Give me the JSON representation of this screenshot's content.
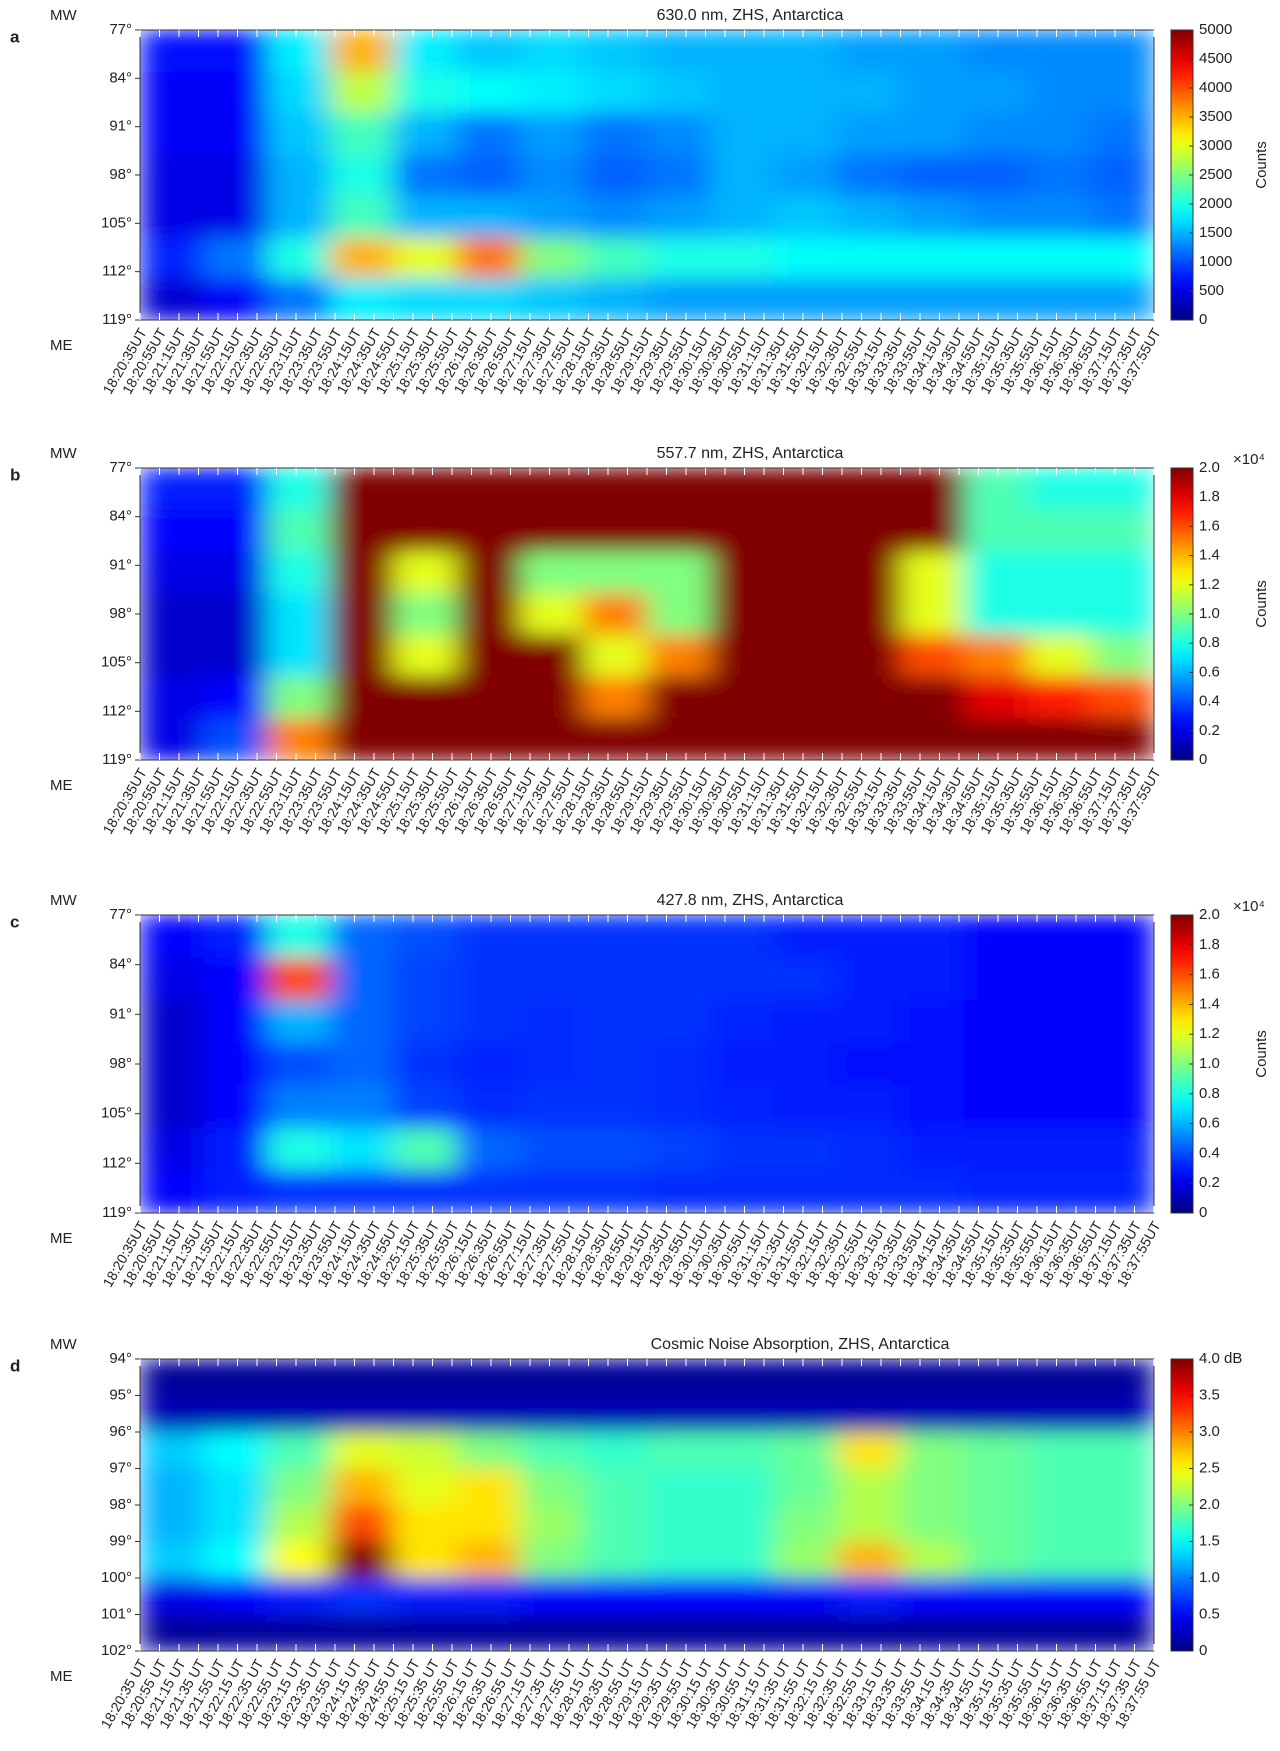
{
  "chart_data": [
    {
      "type": "heatmap",
      "panel_label": "a",
      "title": "630.0 nm, ZHS, Antarctica",
      "y_top_label": "MW",
      "y_bottom_label": "ME",
      "colormap": "jet",
      "categories": [
        "18:20:35UT",
        "18:20:55UT",
        "18:21:15UT",
        "18:21:35UT",
        "18:21:55UT",
        "18:22:15UT",
        "18:22:35UT",
        "18:22:55UT",
        "18:23:15UT",
        "18:23:35UT",
        "18:23:55UT",
        "18:24:15UT",
        "18:24:35UT",
        "18:24:55UT",
        "18:25:15UT",
        "18:25:35UT",
        "18:25:55UT",
        "18:26:15UT",
        "18:26:35UT",
        "18:26:55UT",
        "18:27:15UT",
        "18:27:35UT",
        "18:27:55UT",
        "18:28:15UT",
        "18:28:35UT",
        "18:28:55UT",
        "18:29:15UT",
        "18:29:35UT",
        "18:29:55UT",
        "18:30:15UT",
        "18:30:35UT",
        "18:30:55UT",
        "18:31:15UT",
        "18:31:35UT",
        "18:31:55UT",
        "18:32:15UT",
        "18:32:35UT",
        "18:32:55UT",
        "18:33:15UT",
        "18:33:35UT",
        "18:33:55UT",
        "18:34:15UT",
        "18:34:35UT",
        "18:34:55UT",
        "18:35:15UT",
        "18:35:35UT",
        "18:35:55UT",
        "18:36:15UT",
        "18:36:35UT",
        "18:36:55UT",
        "18:37:15UT",
        "18:37:35UT",
        "18:37:55UT"
      ],
      "ylim": [
        77,
        119
      ],
      "yticks": [
        {
          "value": 77,
          "label": "77°"
        },
        {
          "value": 84,
          "label": "84°"
        },
        {
          "value": 91,
          "label": "91°"
        },
        {
          "value": 98,
          "label": "98°"
        },
        {
          "value": 105,
          "label": "105°"
        },
        {
          "value": 112,
          "label": "112°"
        },
        {
          "value": 119,
          "label": "119°"
        }
      ],
      "zlim": [
        0,
        5000
      ],
      "zticks": [
        0,
        500,
        1000,
        1500,
        2000,
        2500,
        3000,
        3500,
        4000,
        4500,
        5000
      ],
      "colorbar_label": "Counts",
      "z": [
        [
          700,
          700,
          1800,
          3500,
          1800,
          1600,
          1700,
          1600,
          1500,
          1500,
          1500,
          1400,
          1400,
          1300,
          1300,
          1300
        ],
        [
          600,
          600,
          1700,
          2800,
          2000,
          1900,
          1800,
          1700,
          1600,
          1500,
          1500,
          1500,
          1400,
          1400,
          1300,
          1300
        ],
        [
          600,
          600,
          1600,
          2200,
          1500,
          1200,
          1400,
          1200,
          1300,
          1500,
          1500,
          1400,
          1400,
          1300,
          1300,
          1200
        ],
        [
          500,
          500,
          1500,
          2000,
          1200,
          1100,
          1300,
          1100,
          1200,
          1500,
          1400,
          1200,
          1100,
          1100,
          1200,
          1100
        ],
        [
          500,
          500,
          1500,
          2200,
          1500,
          1500,
          1400,
          1300,
          1400,
          1500,
          1600,
          1500,
          1400,
          1300,
          1300,
          1200
        ],
        [
          800,
          1200,
          2000,
          3500,
          3000,
          3800,
          2500,
          2200,
          2000,
          2000,
          1900,
          1900,
          1900,
          1900,
          1900,
          1900
        ],
        [
          400,
          600,
          1200,
          1800,
          1700,
          1700,
          1600,
          1500,
          1400,
          1400,
          1400,
          1400,
          1400,
          1400,
          1400,
          1400
        ]
      ]
    },
    {
      "type": "heatmap",
      "panel_label": "b",
      "title": "557.7 nm, ZHS, Antarctica",
      "y_top_label": "MW",
      "y_bottom_label": "ME",
      "colormap": "jet",
      "categories": [
        "18:20:35UT",
        "18:20:55UT",
        "18:21:15UT",
        "18:21:35UT",
        "18:21:55UT",
        "18:22:15UT",
        "18:22:35UT",
        "18:22:55UT",
        "18:23:15UT",
        "18:23:35UT",
        "18:23:55UT",
        "18:24:15UT",
        "18:24:35UT",
        "18:24:55UT",
        "18:25:15UT",
        "18:25:35UT",
        "18:25:55UT",
        "18:26:15UT",
        "18:26:35UT",
        "18:26:55UT",
        "18:27:15UT",
        "18:27:35UT",
        "18:27:55UT",
        "18:28:15UT",
        "18:28:35UT",
        "18:28:55UT",
        "18:29:15UT",
        "18:29:35UT",
        "18:29:55UT",
        "18:30:15UT",
        "18:30:35UT",
        "18:30:55UT",
        "18:31:15UT",
        "18:31:35UT",
        "18:31:55UT",
        "18:32:15UT",
        "18:32:35UT",
        "18:32:55UT",
        "18:33:15UT",
        "18:33:35UT",
        "18:33:55UT",
        "18:34:15UT",
        "18:34:35UT",
        "18:34:55UT",
        "18:35:15UT",
        "18:35:35UT",
        "18:35:55UT",
        "18:36:15UT",
        "18:36:35UT",
        "18:36:55UT",
        "18:37:15UT",
        "18:37:35UT",
        "18:37:55UT"
      ],
      "ylim": [
        77,
        119
      ],
      "yticks": [
        {
          "value": 77,
          "label": "77°"
        },
        {
          "value": 84,
          "label": "84°"
        },
        {
          "value": 91,
          "label": "91°"
        },
        {
          "value": 98,
          "label": "98°"
        },
        {
          "value": 105,
          "label": "105°"
        },
        {
          "value": 112,
          "label": "112°"
        },
        {
          "value": 119,
          "label": "119°"
        }
      ],
      "zlim": [
        0,
        20000
      ],
      "zticks": [
        0,
        {
          "value": 2000,
          "label": "0.2"
        },
        {
          "value": 4000,
          "label": "0.4"
        },
        {
          "value": 6000,
          "label": "0.6"
        },
        {
          "value": 8000,
          "label": "0.8"
        },
        {
          "value": 10000,
          "label": "1.0"
        },
        {
          "value": 12000,
          "label": "1.2"
        },
        {
          "value": 14000,
          "label": "1.4"
        },
        {
          "value": 16000,
          "label": "1.6"
        },
        {
          "value": 18000,
          "label": "1.8"
        },
        {
          "value": 20000,
          "label": "2.0"
        }
      ],
      "colorbar_exponent": "×10⁴",
      "colorbar_label": "Counts",
      "z": [
        [
          3000,
          3000,
          8000,
          20000,
          20000,
          20000,
          20000,
          20000,
          20000,
          20000,
          20000,
          20000,
          20000,
          9000,
          8000,
          8000
        ],
        [
          2500,
          2500,
          9000,
          20000,
          20000,
          20000,
          20000,
          20000,
          20000,
          20000,
          20000,
          20000,
          20000,
          9000,
          9000,
          9000
        ],
        [
          2000,
          2000,
          8000,
          20000,
          12000,
          20000,
          10000,
          10000,
          10000,
          20000,
          20000,
          20000,
          12000,
          8000,
          8000,
          8000
        ],
        [
          1500,
          1500,
          7000,
          20000,
          10000,
          20000,
          12000,
          15000,
          10000,
          20000,
          20000,
          20000,
          12000,
          8000,
          8000,
          8000
        ],
        [
          1500,
          1500,
          7000,
          20000,
          12000,
          20000,
          20000,
          12000,
          15000,
          20000,
          20000,
          20000,
          16000,
          15000,
          12000,
          10000
        ],
        [
          2000,
          2500,
          10000,
          20000,
          20000,
          20000,
          20000,
          15000,
          20000,
          20000,
          20000,
          20000,
          20000,
          18000,
          17000,
          16000
        ],
        [
          2000,
          4000,
          15000,
          20000,
          20000,
          20000,
          20000,
          20000,
          20000,
          20000,
          20000,
          20000,
          20000,
          20000,
          20000,
          20000
        ]
      ]
    },
    {
      "type": "heatmap",
      "panel_label": "c",
      "title": "427.8 nm, ZHS, Antarctica",
      "y_top_label": "MW",
      "y_bottom_label": "ME",
      "colormap": "jet",
      "categories": [
        "18:20:35UT",
        "18:20:55UT",
        "18:21:15UT",
        "18:21:35UT",
        "18:21:55UT",
        "18:22:15UT",
        "18:22:35UT",
        "18:22:55UT",
        "18:23:15UT",
        "18:23:35UT",
        "18:23:55UT",
        "18:24:15UT",
        "18:24:35UT",
        "18:24:55UT",
        "18:25:15UT",
        "18:25:35UT",
        "18:25:55UT",
        "18:26:15UT",
        "18:26:35UT",
        "18:26:55UT",
        "18:27:15UT",
        "18:27:35UT",
        "18:27:55UT",
        "18:28:15UT",
        "18:28:35UT",
        "18:28:55UT",
        "18:29:15UT",
        "18:29:35UT",
        "18:29:55UT",
        "18:30:15UT",
        "18:30:35UT",
        "18:30:55UT",
        "18:31:15UT",
        "18:31:35UT",
        "18:31:55UT",
        "18:32:15UT",
        "18:32:35UT",
        "18:32:55UT",
        "18:33:15UT",
        "18:33:35UT",
        "18:33:55UT",
        "18:34:15UT",
        "18:34:35UT",
        "18:34:55UT",
        "18:35:15UT",
        "18:35:35UT",
        "18:35:55UT",
        "18:36:15UT",
        "18:36:35UT",
        "18:36:55UT",
        "18:37:15UT",
        "18:37:35UT",
        "18:37:55UT"
      ],
      "ylim": [
        77,
        119
      ],
      "yticks": [
        {
          "value": 77,
          "label": "77°"
        },
        {
          "value": 84,
          "label": "84°"
        },
        {
          "value": 91,
          "label": "91°"
        },
        {
          "value": 98,
          "label": "98°"
        },
        {
          "value": 105,
          "label": "105°"
        },
        {
          "value": 112,
          "label": "112°"
        },
        {
          "value": 119,
          "label": "119°"
        }
      ],
      "zlim": [
        0,
        20000
      ],
      "zticks": [
        0,
        {
          "value": 2000,
          "label": "0.2"
        },
        {
          "value": 4000,
          "label": "0.4"
        },
        {
          "value": 6000,
          "label": "0.6"
        },
        {
          "value": 8000,
          "label": "0.8"
        },
        {
          "value": 10000,
          "label": "1.0"
        },
        {
          "value": 12000,
          "label": "1.2"
        },
        {
          "value": 14000,
          "label": "1.4"
        },
        {
          "value": 16000,
          "label": "1.6"
        },
        {
          "value": 18000,
          "label": "1.8"
        },
        {
          "value": 20000,
          "label": "2.0"
        }
      ],
      "colorbar_exponent": "×10⁴",
      "colorbar_label": "Counts",
      "z": [
        [
          2500,
          3000,
          8000,
          4500,
          4000,
          3500,
          3500,
          3500,
          3500,
          3500,
          3000,
          3000,
          3000,
          2500,
          2500,
          2500
        ],
        [
          2000,
          2500,
          16000,
          4500,
          3800,
          3500,
          3500,
          3500,
          3500,
          3500,
          3500,
          3000,
          3000,
          2500,
          2500,
          2500
        ],
        [
          1500,
          2500,
          6000,
          4500,
          3800,
          3500,
          3300,
          3500,
          3500,
          3200,
          3000,
          3000,
          2800,
          2500,
          2500,
          2500
        ],
        [
          1500,
          2500,
          4000,
          4500,
          3500,
          3200,
          3300,
          3500,
          3300,
          3000,
          3000,
          2800,
          2800,
          2500,
          2500,
          2500
        ],
        [
          1500,
          2500,
          5000,
          5000,
          3800,
          3300,
          3500,
          3500,
          3300,
          3200,
          3000,
          3000,
          2800,
          2500,
          2500,
          2500
        ],
        [
          2000,
          3000,
          8000,
          7000,
          9000,
          4500,
          4000,
          4000,
          3800,
          3500,
          3500,
          3300,
          3000,
          3000,
          3000,
          3000
        ],
        [
          2500,
          3000,
          3500,
          3500,
          3500,
          3500,
          3500,
          3500,
          3300,
          3300,
          3300,
          3300,
          3300,
          3200,
          3200,
          3200
        ]
      ]
    },
    {
      "type": "heatmap",
      "panel_label": "d",
      "title": "Cosmic Noise Absorption, ZHS, Antarctica",
      "y_top_label": "MW",
      "y_bottom_label": "ME",
      "colormap": "jet",
      "categories": [
        "18:20:35 UT",
        "18:20:55 UT",
        "18:21:15 UT",
        "18:21:35 UT",
        "18:21:55 UT",
        "18:22:15 UT",
        "18:22:35 UT",
        "18:22:55 UT",
        "18:23:15 UT",
        "18:23:35 UT",
        "18:23:55 UT",
        "18:24:15 UT",
        "18:24:35 UT",
        "18:24:55 UT",
        "18:25:15 UT",
        "18:25:35 UT",
        "18:25:55 UT",
        "18:26:15 UT",
        "18:26:35 UT",
        "18:26:55 UT",
        "18:27:15 UT",
        "18:27:35 UT",
        "18:27:55 UT",
        "18:28:15 UT",
        "18:28:35 UT",
        "18:28:55 UT",
        "18:29:15 UT",
        "18:29:35 UT",
        "18:29:55 UT",
        "18:30:15 UT",
        "18:30:35 UT",
        "18:30:55 UT",
        "18:31:15 UT",
        "18:31:35 UT",
        "18:31:55 UT",
        "18:32:15 UT",
        "18:32:35 UT",
        "18:32:55 UT",
        "18:33:15 UT",
        "18:33:35 UT",
        "18:33:55 UT",
        "18:34:15 UT",
        "18:34:35 UT",
        "18:34:55 UT",
        "18:35:15 UT",
        "18:35:35 UT",
        "18:35:55 UT",
        "18:36:15 UT",
        "18:36:35 UT",
        "18:36:55 UT",
        "18:37:15 UT",
        "18:37:35 UT",
        "18:37:55 UT"
      ],
      "ylim": [
        94,
        102
      ],
      "yticks": [
        {
          "value": 94,
          "label": "94°"
        },
        {
          "value": 95,
          "label": "95°"
        },
        {
          "value": 96,
          "label": "96°"
        },
        {
          "value": 97,
          "label": "97°"
        },
        {
          "value": 98,
          "label": "98°"
        },
        {
          "value": 99,
          "label": "99°"
        },
        {
          "value": 100,
          "label": "100°"
        },
        {
          "value": 101,
          "label": "101°"
        },
        {
          "value": 102,
          "label": "102°"
        }
      ],
      "zlim": [
        0,
        4
      ],
      "zticks": [
        0,
        0.5,
        {
          "value": 1,
          "label": "1.0"
        },
        1.5,
        {
          "value": 2,
          "label": "2.0"
        },
        2.5,
        {
          "value": 3,
          "label": "3.0"
        },
        3.5,
        {
          "value": 4,
          "label": "4.0 dB"
        }
      ],
      "z": [
        [
          0.1,
          0.1,
          0.1,
          0.1,
          0.1,
          0.1,
          0.1,
          0.1,
          0.1,
          0.1,
          0.1,
          0.1,
          0.1,
          0.1,
          0.1,
          0.1
        ],
        [
          0.2,
          0.2,
          0.2,
          0.2,
          0.2,
          0.2,
          0.2,
          0.2,
          0.2,
          0.2,
          0.2,
          0.2,
          0.2,
          0.2,
          0.2,
          0.2
        ],
        [
          1.3,
          1.5,
          1.8,
          2.4,
          2.3,
          2.0,
          1.8,
          1.7,
          1.8,
          1.8,
          1.9,
          2.6,
          2.0,
          1.9,
          1.8,
          1.8
        ],
        [
          1.2,
          1.4,
          2.0,
          2.8,
          2.4,
          2.6,
          2.0,
          1.8,
          1.7,
          1.7,
          1.9,
          2.2,
          2.0,
          1.9,
          1.8,
          1.8
        ],
        [
          1.2,
          1.4,
          2.2,
          3.2,
          2.6,
          2.6,
          2.1,
          1.8,
          1.7,
          1.7,
          2.0,
          2.2,
          2.0,
          1.9,
          1.8,
          1.8
        ],
        [
          1.3,
          1.5,
          2.5,
          4.0,
          2.6,
          2.8,
          2.0,
          1.8,
          1.7,
          1.7,
          2.1,
          2.8,
          2.2,
          1.9,
          1.8,
          1.8
        ],
        [
          0.4,
          0.5,
          0.6,
          0.7,
          0.6,
          0.6,
          0.5,
          0.5,
          0.5,
          0.5,
          0.5,
          0.6,
          0.5,
          0.5,
          0.5,
          0.5
        ],
        [
          0.1,
          0.1,
          0.1,
          0.1,
          0.1,
          0.1,
          0.1,
          0.1,
          0.1,
          0.1,
          0.1,
          0.1,
          0.1,
          0.1,
          0.1,
          0.1
        ]
      ]
    }
  ]
}
